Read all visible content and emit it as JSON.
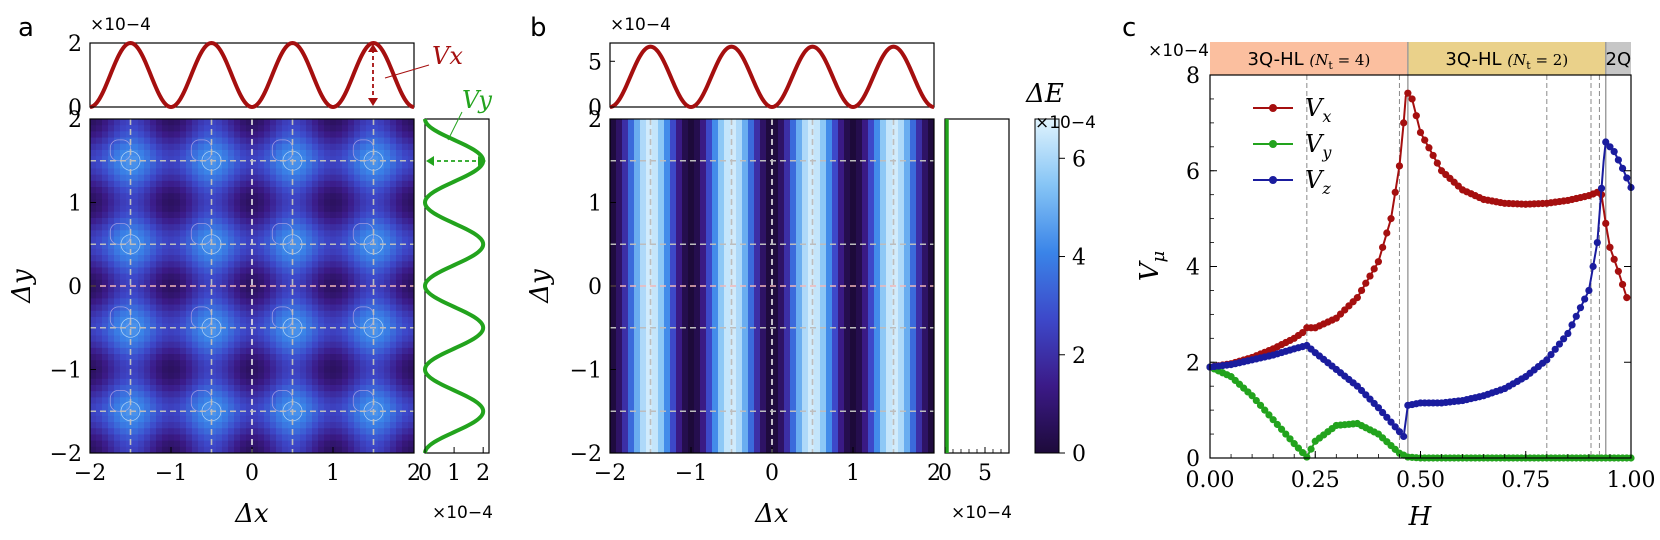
{
  "panel_labels": [
    "a",
    "b",
    "c"
  ],
  "colorbar": {
    "label": "ΔE",
    "exponent": "×10−4",
    "ticks": [
      0,
      2,
      4,
      6
    ],
    "range": [
      0,
      6.8
    ]
  },
  "chart_data": [
    {
      "id": "a",
      "type": "heatmap",
      "xlabel": "Δx",
      "ylabel": "Δy",
      "xlim": [
        -2,
        2
      ],
      "ylim": [
        -2,
        2
      ],
      "xticks": [
        -2,
        -1,
        0,
        1,
        2
      ],
      "yticks": [
        -2,
        -1,
        0,
        1,
        2
      ],
      "field": "ΔE ∝ sin²(πΔx) + sin²(πΔy)",
      "dashed_lines_x": [
        -1.5,
        -0.5,
        0,
        0.5,
        1.5
      ],
      "dashed_lines_y": [
        -1.5,
        -0.5,
        0,
        0.5,
        1.5
      ],
      "top_curve": {
        "label": "Vx",
        "exponent": "×10−4",
        "ylim": [
          0,
          2
        ],
        "yticks": [
          0,
          2
        ],
        "amplitude": 2,
        "period": 1
      },
      "side_curve": {
        "label": "Vy",
        "exponent": "×10−4",
        "xlim": [
          0,
          2.2
        ],
        "xticks": [
          0,
          1,
          2
        ],
        "amplitude": 2,
        "period": 1
      }
    },
    {
      "id": "b",
      "type": "heatmap",
      "xlabel": "Δx",
      "ylabel": "Δy",
      "xlim": [
        -2,
        2
      ],
      "ylim": [
        -2,
        2
      ],
      "xticks": [
        -2,
        -1,
        0,
        1,
        2
      ],
      "yticks": [
        -2,
        -1,
        0,
        1,
        2
      ],
      "field": "ΔE ∝ sin²(πΔx) (independent of Δy)",
      "dashed_lines_x": [
        -1.5,
        -0.5,
        0,
        0.5,
        1.5
      ],
      "dashed_lines_y": [
        -1.5,
        -0.5,
        0,
        0.5,
        1.5
      ],
      "top_curve": {
        "exponent": "×10−4",
        "ylim": [
          0,
          7
        ],
        "yticks": [
          0,
          5
        ],
        "amplitude": 6.6,
        "period": 1
      },
      "side_curve": {
        "exponent": "×10−4",
        "xlim": [
          0,
          8
        ],
        "xticks": [
          0,
          5
        ],
        "amplitude": 0
      }
    },
    {
      "id": "c",
      "type": "line",
      "xlabel": "H",
      "ylabel": "Vμ",
      "exponent": "×10−4",
      "xlim": [
        0,
        1
      ],
      "ylim": [
        0,
        8
      ],
      "xticks": [
        0.0,
        0.25,
        0.5,
        0.75,
        1.0
      ],
      "xtick_labels": [
        "0.00",
        "0.25",
        "0.50",
        "0.75",
        "1.00"
      ],
      "yticks": [
        0,
        2,
        4,
        6,
        8
      ],
      "phases": [
        {
          "label": "3Q-HL",
          "sub": "(N",
          "subt": "t",
          "eq": " = 4)",
          "from": 0,
          "to": 0.47,
          "color": "#fbbf9f"
        },
        {
          "label": "3Q-HL",
          "sub": "(N",
          "subt": "t",
          "eq": " = 2)",
          "from": 0.47,
          "to": 0.94,
          "color": "#ead18a"
        },
        {
          "label": "2Q",
          "from": 0.94,
          "to": 1.0,
          "color": "#c6c6c6"
        }
      ],
      "vlines_dashed": [
        0.23,
        0.45,
        0.8,
        0.905,
        0.925
      ],
      "vlines_solid": [
        0.47,
        0.94
      ],
      "series": [
        {
          "name": "Vx",
          "color": "#a50f0f",
          "x": [
            0.0,
            0.05,
            0.1,
            0.15,
            0.2,
            0.225,
            0.23,
            0.25,
            0.3,
            0.35,
            0.4,
            0.43,
            0.45,
            0.46,
            0.465,
            0.47,
            0.48,
            0.5,
            0.55,
            0.6,
            0.65,
            0.7,
            0.75,
            0.8,
            0.85,
            0.9,
            0.92,
            0.93,
            0.94,
            0.95,
            0.97,
            0.99
          ],
          "y": [
            1.9,
            1.97,
            2.1,
            2.28,
            2.5,
            2.65,
            2.72,
            2.72,
            2.92,
            3.35,
            4.1,
            5.0,
            6.1,
            7.0,
            7.55,
            7.62,
            7.5,
            6.8,
            6.0,
            5.6,
            5.4,
            5.32,
            5.3,
            5.32,
            5.38,
            5.48,
            5.55,
            5.5,
            4.9,
            4.4,
            3.9,
            3.35
          ]
        },
        {
          "name": "Vy",
          "color": "#22a31d",
          "x": [
            0.0,
            0.05,
            0.1,
            0.15,
            0.2,
            0.23,
            0.25,
            0.3,
            0.35,
            0.4,
            0.45,
            0.47,
            0.5,
            0.6,
            0.7,
            0.8,
            0.9,
            1.0
          ],
          "y": [
            1.9,
            1.7,
            1.3,
            0.8,
            0.3,
            0.02,
            0.35,
            0.68,
            0.72,
            0.5,
            0.1,
            0.02,
            0.0,
            0.0,
            0.0,
            0.0,
            0.0,
            0.0
          ]
        },
        {
          "name": "Vz",
          "color": "#1a1c9e",
          "x": [
            0.0,
            0.05,
            0.1,
            0.15,
            0.2,
            0.23,
            0.25,
            0.3,
            0.35,
            0.4,
            0.43,
            0.46,
            0.47,
            0.5,
            0.55,
            0.6,
            0.65,
            0.7,
            0.75,
            0.8,
            0.85,
            0.9,
            0.92,
            0.935,
            0.94,
            0.96,
            0.98,
            1.0
          ],
          "y": [
            1.9,
            1.95,
            2.05,
            2.15,
            2.28,
            2.35,
            2.2,
            1.85,
            1.5,
            1.05,
            0.75,
            0.45,
            1.1,
            1.15,
            1.15,
            1.2,
            1.3,
            1.45,
            1.7,
            2.05,
            2.6,
            3.5,
            4.5,
            6.2,
            6.6,
            6.4,
            6.05,
            5.65
          ]
        }
      ],
      "legend_position": "upper-left"
    }
  ]
}
